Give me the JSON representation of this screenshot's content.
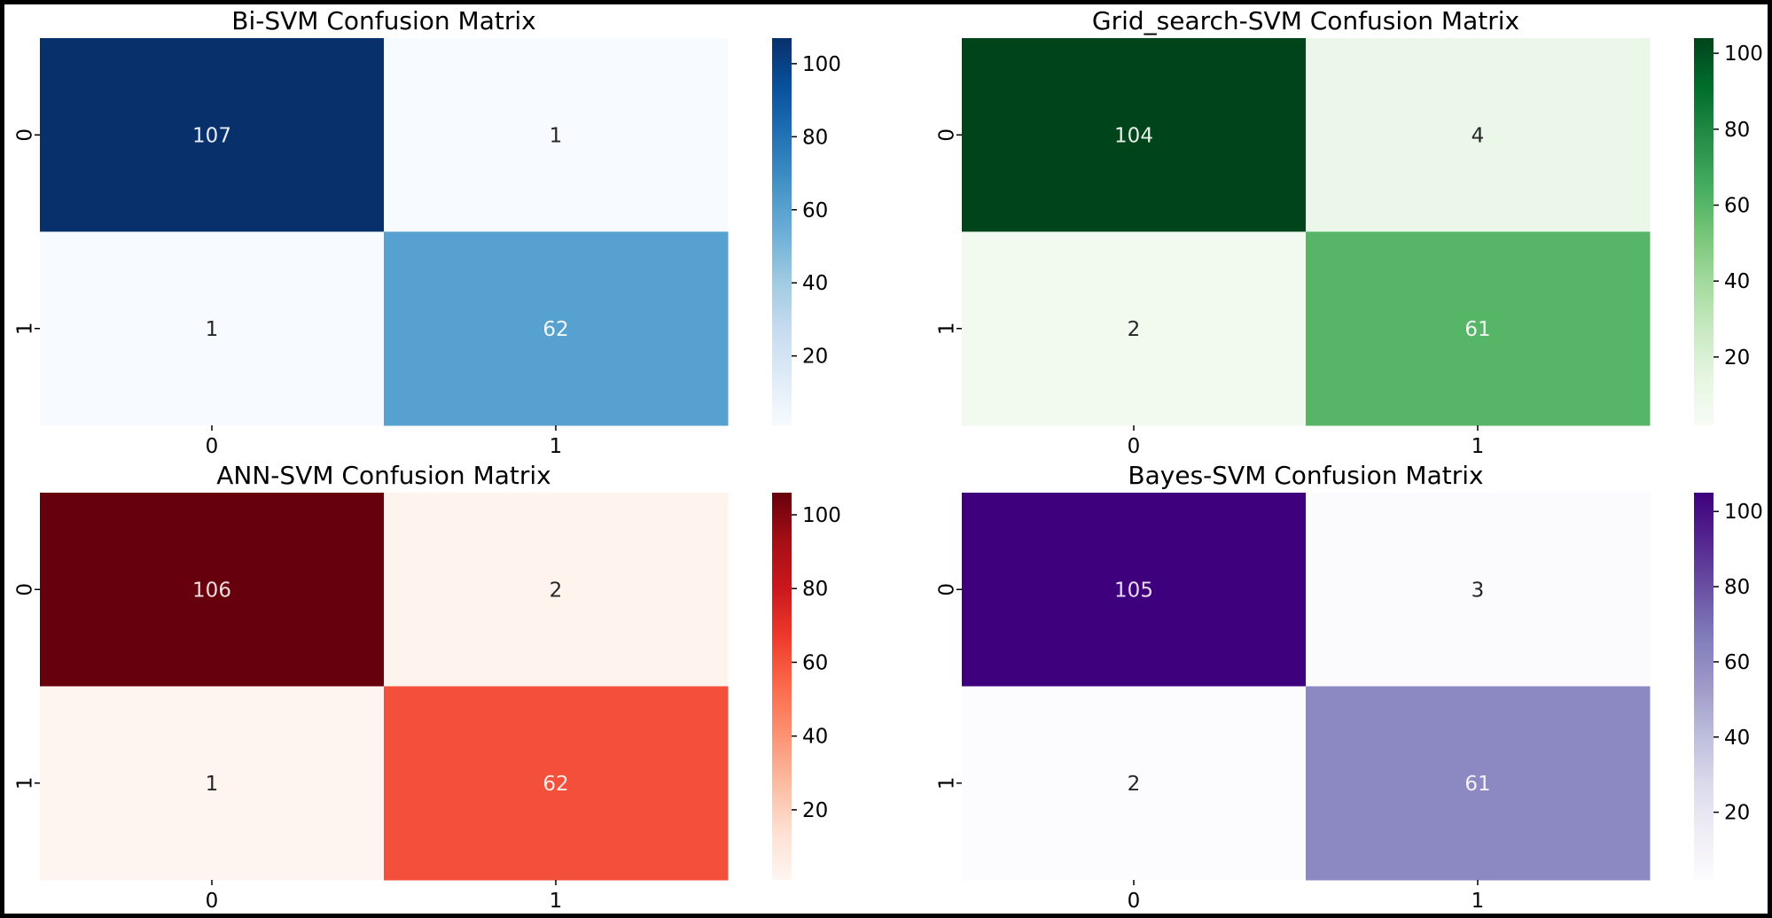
{
  "chart_data": [
    {
      "type": "heatmap",
      "title": "Bi-SVM Confusion Matrix",
      "xlabel": "",
      "ylabel": "",
      "x_tick_labels": [
        "0",
        "1"
      ],
      "y_tick_labels": [
        "0",
        "1"
      ],
      "values": [
        [
          107,
          1
        ],
        [
          1,
          62
        ]
      ],
      "colormap": "Blues",
      "color_range": [
        1,
        107
      ],
      "colorbar_ticks": [
        "20",
        "40",
        "60",
        "80",
        "100"
      ],
      "cell_colors": [
        [
          "#08306b",
          "#f7fbff"
        ],
        [
          "#f7fbff",
          "#56a1d0"
        ]
      ],
      "text_colors": [
        [
          "#e6ecf5",
          "#262626"
        ],
        [
          "#262626",
          "#f2f6fa"
        ]
      ],
      "colorbar_colors": [
        "#f7fbff",
        "#deebf7",
        "#c6dbef",
        "#9ecae1",
        "#6baed6",
        "#4292c6",
        "#2171b5",
        "#08519c",
        "#08306b"
      ]
    },
    {
      "type": "heatmap",
      "title": "Grid_search-SVM Confusion Matrix",
      "xlabel": "",
      "ylabel": "",
      "x_tick_labels": [
        "0",
        "1"
      ],
      "y_tick_labels": [
        "0",
        "1"
      ],
      "values": [
        [
          104,
          4
        ],
        [
          2,
          61
        ]
      ],
      "colormap": "Greens",
      "color_range": [
        2,
        104
      ],
      "colorbar_ticks": [
        "20",
        "40",
        "60",
        "80",
        "100"
      ],
      "cell_colors": [
        [
          "#00441b",
          "#ebf7e8"
        ],
        [
          "#f2faf0",
          "#57b567"
        ]
      ],
      "text_colors": [
        [
          "#e6efe8",
          "#262626"
        ],
        [
          "#262626",
          "#f2f6f2"
        ]
      ],
      "colorbar_colors": [
        "#f7fcf5",
        "#e5f5e0",
        "#c7e9c0",
        "#a1d99b",
        "#74c476",
        "#41ab5d",
        "#238b45",
        "#006d2c",
        "#00441b"
      ]
    },
    {
      "type": "heatmap",
      "title": "ANN-SVM Confusion Matrix",
      "xlabel": "",
      "ylabel": "",
      "x_tick_labels": [
        "0",
        "1"
      ],
      "y_tick_labels": [
        "0",
        "1"
      ],
      "values": [
        [
          106,
          2
        ],
        [
          1,
          62
        ]
      ],
      "colormap": "Reds",
      "color_range": [
        1,
        106
      ],
      "colorbar_ticks": [
        "20",
        "40",
        "60",
        "80",
        "100"
      ],
      "cell_colors": [
        [
          "#67000d",
          "#fff3ee"
        ],
        [
          "#fff5f0",
          "#f44f3a"
        ]
      ],
      "text_colors": [
        [
          "#f0dcdc",
          "#262626"
        ],
        [
          "#262626",
          "#fbe9e6"
        ]
      ],
      "colorbar_colors": [
        "#fff5f0",
        "#fee0d2",
        "#fcbba1",
        "#fc9272",
        "#fb6a4a",
        "#ef3b2c",
        "#cb181d",
        "#a50f15",
        "#67000d"
      ]
    },
    {
      "type": "heatmap",
      "title": "Bayes-SVM Confusion Matrix",
      "xlabel": "",
      "ylabel": "",
      "x_tick_labels": [
        "0",
        "1"
      ],
      "y_tick_labels": [
        "0",
        "1"
      ],
      "values": [
        [
          105,
          3
        ],
        [
          2,
          61
        ]
      ],
      "colormap": "Purples",
      "color_range": [
        2,
        105
      ],
      "colorbar_ticks": [
        "20",
        "40",
        "60",
        "80",
        "100"
      ],
      "cell_colors": [
        [
          "#3f007d",
          "#fbfbfd"
        ],
        [
          "#fcfbfd",
          "#8c88c1"
        ]
      ],
      "text_colors": [
        [
          "#e6dcf0",
          "#262626"
        ],
        [
          "#262626",
          "#f4f2f9"
        ]
      ],
      "colorbar_colors": [
        "#fcfbfd",
        "#efedf5",
        "#dadaeb",
        "#bcbddc",
        "#9e9ac8",
        "#807dba",
        "#6a51a3",
        "#54278f",
        "#3f007d"
      ]
    }
  ]
}
